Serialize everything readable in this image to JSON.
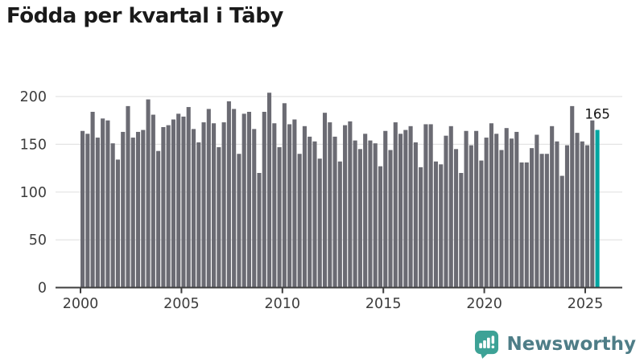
{
  "title": "Födda per kvartal i Täby",
  "chart_data": {
    "type": "bar",
    "title": "Födda per kvartal i Täby",
    "period": "quarterly",
    "start": "2000 Q1",
    "end": "2025 Q3",
    "values": [
      164,
      161,
      184,
      157,
      177,
      175,
      151,
      134,
      163,
      190,
      157,
      163,
      165,
      197,
      181,
      143,
      168,
      170,
      176,
      182,
      179,
      189,
      166,
      152,
      173,
      187,
      172,
      147,
      173,
      195,
      187,
      140,
      182,
      184,
      166,
      120,
      184,
      204,
      172,
      147,
      193,
      171,
      176,
      140,
      169,
      158,
      153,
      135,
      183,
      173,
      158,
      132,
      170,
      174,
      154,
      145,
      161,
      154,
      151,
      127,
      164,
      144,
      173,
      161,
      165,
      169,
      152,
      126,
      171,
      171,
      132,
      129,
      159,
      169,
      145,
      120,
      164,
      149,
      164,
      133,
      157,
      172,
      161,
      144,
      167,
      156,
      163,
      131,
      131,
      146,
      160,
      140,
      140,
      169,
      153,
      117,
      149,
      190,
      162,
      153,
      149,
      175,
      165
    ],
    "highlight_last": true,
    "highlight_value_label": "165",
    "x_tick_labels": [
      "2000",
      "2005",
      "2010",
      "2015",
      "2020",
      "2025"
    ],
    "y_tick_labels": [
      "0",
      "50",
      "100",
      "150",
      "200"
    ],
    "ylim": [
      0,
      210
    ],
    "grid": true,
    "legend": "none",
    "bar_color": "#6b6b73",
    "highlight_color": "#00a5a1",
    "grid_color": "#e4e4e4",
    "axis_color": "#3f3f3f",
    "tick_label_color": "#3d3d3d",
    "value_label_color": "#141414"
  },
  "branding": {
    "logo_text": "Newsworthy",
    "logo_icon": "newsworthy-speech-bubble-chart-icon",
    "icon_color": "#3da296",
    "text_color": "#4e7d87"
  }
}
